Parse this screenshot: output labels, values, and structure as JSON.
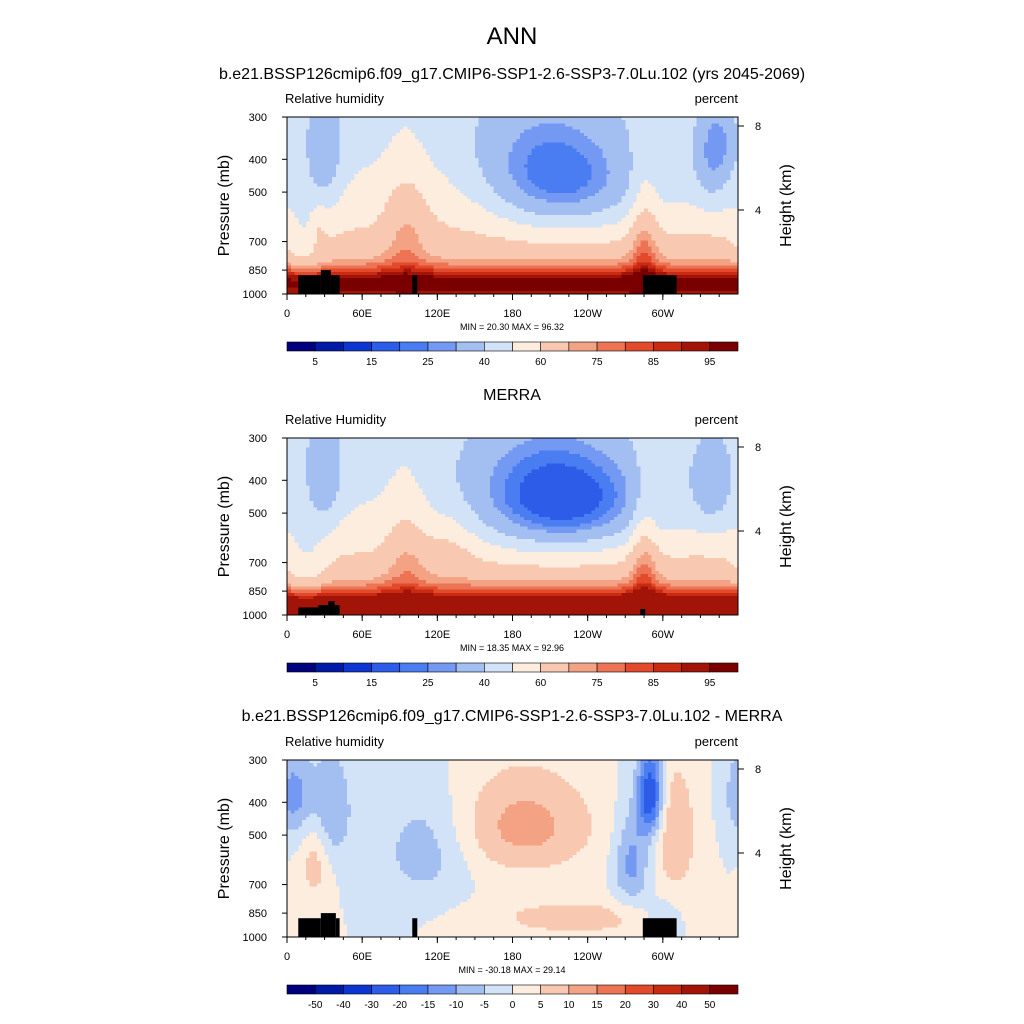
{
  "figure": {
    "title": "ANN",
    "colors": {
      "abs_levels": [
        "#00007f",
        "#0019a6",
        "#0c35d1",
        "#2d5de8",
        "#4b7df2",
        "#7399f2",
        "#a3bff2",
        "#d2e2f7",
        "#fdeddf",
        "#f9c8b1",
        "#f3a383",
        "#ec7455",
        "#e24a2b",
        "#c92a12",
        "#a21407",
        "#7a0000"
      ],
      "diff_levels": [
        "#00007f",
        "#0019a6",
        "#0c35d1",
        "#2d5de8",
        "#4b7df2",
        "#7399f2",
        "#a3bff2",
        "#d2e2f7",
        "#fdeddf",
        "#f9c8b1",
        "#f3a383",
        "#ec7455",
        "#e24a2b",
        "#c92a12",
        "#a21407",
        "#7a0000"
      ],
      "land_mask": "#000000"
    }
  },
  "chart_data": [
    {
      "type": "heatmap",
      "title": "b.e21.BSSP126cmip6.f09_g17.CMIP6-SSP1-2.6-SSP3-7.0Lu.102 (yrs 2045-2069)",
      "left_label": "Relative humidity",
      "right_label": "percent",
      "ylabel": "Pressure (mb)",
      "ylabel_right": "Height (km)",
      "x_ticks": [
        "0",
        "60E",
        "120E",
        "180",
        "120W",
        "60W"
      ],
      "y_ticks": [
        "300",
        "400",
        "500",
        "700",
        "850",
        "1000"
      ],
      "y_ticks_right": [
        "8",
        "4"
      ],
      "x_range_deg": [
        0,
        360
      ],
      "y_range_mb": [
        1000,
        300
      ],
      "stats": "MIN =  20.30  MAX =  96.32",
      "min": 20.3,
      "max": 96.32,
      "colorbar_labels": [
        "5",
        "15",
        "25",
        "40",
        "60",
        "75",
        "85",
        "95"
      ],
      "levels": [
        5,
        10,
        15,
        20,
        25,
        30,
        40,
        50,
        60,
        70,
        75,
        80,
        85,
        90,
        95
      ],
      "field": "model"
    },
    {
      "type": "heatmap",
      "title": "MERRA",
      "left_label": "Relative Humidity",
      "right_label": "percent",
      "ylabel": "Pressure (mb)",
      "ylabel_right": "Height (km)",
      "x_ticks": [
        "0",
        "60E",
        "120E",
        "180",
        "120W",
        "60W"
      ],
      "y_ticks": [
        "300",
        "400",
        "500",
        "700",
        "850",
        "1000"
      ],
      "y_ticks_right": [
        "8",
        "4"
      ],
      "x_range_deg": [
        0,
        360
      ],
      "y_range_mb": [
        1000,
        300
      ],
      "stats": "MIN =  18.35  MAX =  92.96",
      "min": 18.35,
      "max": 92.96,
      "colorbar_labels": [
        "5",
        "15",
        "25",
        "40",
        "60",
        "75",
        "85",
        "95"
      ],
      "levels": [
        5,
        10,
        15,
        20,
        25,
        30,
        40,
        50,
        60,
        70,
        75,
        80,
        85,
        90,
        95
      ],
      "field": "obs"
    },
    {
      "type": "heatmap",
      "title": "b.e21.BSSP126cmip6.f09_g17.CMIP6-SSP1-2.6-SSP3-7.0Lu.102 - MERRA",
      "left_label": "Relative humidity",
      "right_label": "percent",
      "ylabel": "Pressure (mb)",
      "ylabel_right": "Height (km)",
      "x_ticks": [
        "0",
        "60E",
        "120E",
        "180",
        "120W",
        "60W"
      ],
      "y_ticks": [
        "300",
        "400",
        "500",
        "700",
        "850",
        "1000"
      ],
      "y_ticks_right": [
        "8",
        "4"
      ],
      "x_range_deg": [
        0,
        360
      ],
      "y_range_mb": [
        1000,
        300
      ],
      "stats": "MIN = -30.18  MAX =  29.14",
      "min": -30.18,
      "max": 29.14,
      "colorbar_labels": [
        "-50",
        "-40",
        "-30",
        "-20",
        "-15",
        "-10",
        "-5",
        "0",
        "5",
        "10",
        "15",
        "20",
        "30",
        "40",
        "50"
      ],
      "levels": [
        -50,
        -40,
        -30,
        -20,
        -15,
        -10,
        -5,
        0,
        5,
        10,
        15,
        20,
        30,
        40,
        50
      ],
      "field": "diff"
    }
  ]
}
